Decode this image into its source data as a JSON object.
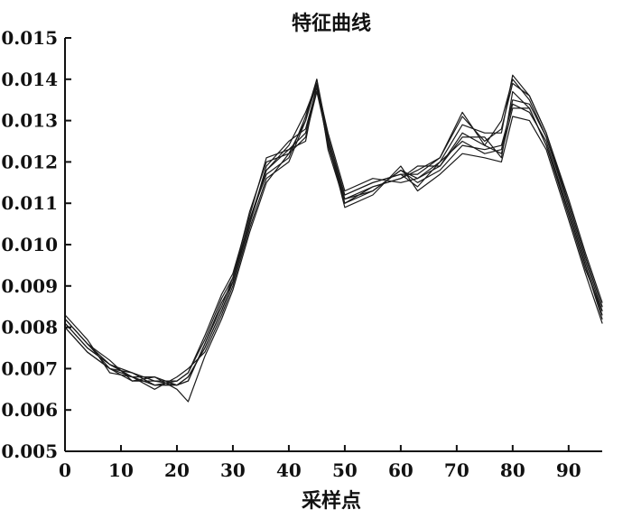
{
  "chart_data": {
    "type": "line",
    "title": "特征曲线",
    "xlabel": "采样点",
    "ylabel": "",
    "xlim": [
      0,
      96
    ],
    "ylim": [
      0.005,
      0.015
    ],
    "x_ticks": [
      0,
      10,
      20,
      30,
      40,
      50,
      60,
      70,
      80,
      90
    ],
    "x_tick_labels": [
      "0",
      "10",
      "20",
      "30",
      "40",
      "50",
      "60",
      "70",
      "80",
      "90"
    ],
    "y_ticks": [
      0.005,
      0.006,
      0.007,
      0.008,
      0.009,
      0.01,
      0.011,
      0.012,
      0.013,
      0.014,
      0.015
    ],
    "y_tick_labels": [
      "0.005",
      "0.006",
      "0.007",
      "0.008",
      "0.009",
      "0.010",
      "0.011",
      "0.012",
      "0.013",
      "0.014",
      "0.015"
    ],
    "grid": false,
    "legend": "none",
    "line_color": "#1a1a1a",
    "x": [
      0,
      4,
      8,
      12,
      16,
      20,
      22,
      25,
      28,
      30,
      33,
      36,
      40,
      43,
      45,
      47,
      50,
      55,
      60,
      63,
      67,
      71,
      75,
      78,
      80,
      83,
      86,
      90,
      93,
      96
    ],
    "series": [
      {
        "values": [
          0.0082,
          0.0076,
          0.0071,
          0.0068,
          0.0066,
          0.0066,
          0.0068,
          0.0075,
          0.0084,
          0.0091,
          0.0106,
          0.0118,
          0.0124,
          0.0132,
          0.0139,
          0.0126,
          0.0112,
          0.0115,
          0.0117,
          0.0117,
          0.0121,
          0.0132,
          0.0124,
          0.013,
          0.014,
          0.0135,
          0.0126,
          0.011,
          0.0097,
          0.0085
        ]
      },
      {
        "values": [
          0.008,
          0.0074,
          0.007,
          0.0067,
          0.0067,
          0.0067,
          0.0069,
          0.0077,
          0.0087,
          0.0092,
          0.0108,
          0.012,
          0.0122,
          0.013,
          0.014,
          0.0123,
          0.011,
          0.0114,
          0.0116,
          0.0119,
          0.0119,
          0.0126,
          0.0126,
          0.0121,
          0.0137,
          0.0133,
          0.0124,
          0.0107,
          0.0094,
          0.0084
        ]
      },
      {
        "values": [
          0.0083,
          0.0077,
          0.0069,
          0.0068,
          0.0065,
          0.0068,
          0.007,
          0.0074,
          0.0083,
          0.009,
          0.0104,
          0.0116,
          0.012,
          0.013,
          0.0139,
          0.0127,
          0.0113,
          0.0116,
          0.0115,
          0.0116,
          0.012,
          0.0129,
          0.0127,
          0.0127,
          0.0141,
          0.0136,
          0.0127,
          0.0111,
          0.0098,
          0.0086
        ]
      },
      {
        "values": [
          0.0081,
          0.0075,
          0.0071,
          0.0069,
          0.0067,
          0.0066,
          0.0067,
          0.0076,
          0.0086,
          0.0091,
          0.0105,
          0.0119,
          0.0125,
          0.0128,
          0.0138,
          0.0124,
          0.0111,
          0.0113,
          0.0118,
          0.0115,
          0.0118,
          0.0124,
          0.0123,
          0.0124,
          0.0134,
          0.0132,
          0.0125,
          0.0108,
          0.0095,
          0.0082
        ]
      },
      {
        "values": [
          0.0082,
          0.0076,
          0.0072,
          0.0067,
          0.0068,
          0.0065,
          0.0062,
          0.0073,
          0.0082,
          0.0089,
          0.0103,
          0.0115,
          0.0122,
          0.0126,
          0.0137,
          0.0125,
          0.0109,
          0.0112,
          0.0119,
          0.0113,
          0.0117,
          0.0122,
          0.0121,
          0.012,
          0.0131,
          0.013,
          0.0123,
          0.0106,
          0.0093,
          0.0081
        ]
      },
      {
        "values": [
          0.008,
          0.0074,
          0.007,
          0.0068,
          0.0066,
          0.0067,
          0.0069,
          0.0078,
          0.0088,
          0.0093,
          0.0107,
          0.0121,
          0.0123,
          0.0125,
          0.0139,
          0.0124,
          0.0112,
          0.0115,
          0.0117,
          0.0114,
          0.012,
          0.0125,
          0.0122,
          0.0123,
          0.0135,
          0.0134,
          0.0126,
          0.0109,
          0.0096,
          0.0084
        ]
      },
      {
        "values": [
          0.0081,
          0.0075,
          0.0071,
          0.0068,
          0.0068,
          0.0066,
          0.0067,
          0.0076,
          0.0085,
          0.0092,
          0.0106,
          0.0117,
          0.0121,
          0.0131,
          0.014,
          0.0126,
          0.0111,
          0.0114,
          0.0116,
          0.0118,
          0.0121,
          0.0131,
          0.0125,
          0.0128,
          0.0139,
          0.0136,
          0.0127,
          0.011,
          0.0097,
          0.0085
        ]
      },
      {
        "values": [
          0.0082,
          0.0076,
          0.007,
          0.0069,
          0.0066,
          0.0066,
          0.0068,
          0.0075,
          0.0084,
          0.0091,
          0.0105,
          0.0118,
          0.0123,
          0.0127,
          0.0138,
          0.0125,
          0.011,
          0.0113,
          0.0118,
          0.0116,
          0.0119,
          0.0127,
          0.0124,
          0.0122,
          0.0133,
          0.0133,
          0.0124,
          0.0108,
          0.0095,
          0.0083
        ]
      }
    ]
  }
}
